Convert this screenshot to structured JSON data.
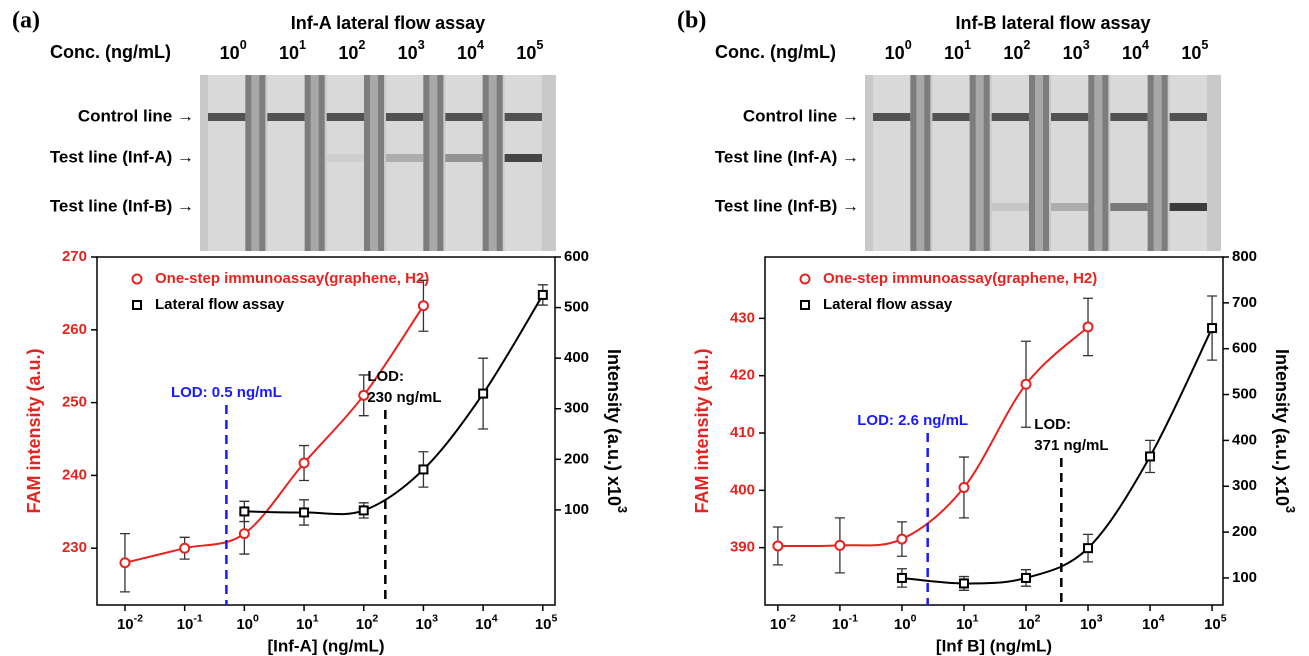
{
  "chart_data": [
    {
      "type": "line",
      "xscale": "log",
      "xlabel": "[Inf-A] (ng/mL)",
      "ylabel": "FAM intensity (a.u.)",
      "ycolor": "#e8231f",
      "y2label": {
        "label": "Intensity (a.u.) x10",
        "sup": "3"
      },
      "xlim": [
        0.0034,
        160000
      ],
      "xticks": [
        {
          "value": 0.01,
          "label": "10",
          "sup": "-2"
        },
        {
          "value": 0.1,
          "label": "10",
          "sup": "-1"
        },
        {
          "value": 1,
          "label": "10",
          "sup": "0"
        },
        {
          "value": 10,
          "label": "10",
          "sup": "1"
        },
        {
          "value": 100,
          "label": "10",
          "sup": "2"
        },
        {
          "value": 1000,
          "label": "10",
          "sup": "3"
        },
        {
          "value": 10000,
          "label": "10",
          "sup": "4"
        },
        {
          "value": 100000,
          "label": "10",
          "sup": "5"
        }
      ],
      "ylim": [
        222.2,
        270
      ],
      "yticks": [
        230,
        240,
        250,
        260,
        270
      ],
      "y2lim": [
        -88,
        600
      ],
      "y2ticks": [
        100,
        200,
        300,
        400,
        500,
        600
      ],
      "legend": "upper left",
      "series": [
        {
          "name": "One-step immunoassay(graphene, H2)",
          "color": "#e8231f",
          "marker": "circle",
          "axis": "y",
          "x": [
            0.01,
            0.1,
            1,
            10,
            100,
            1000
          ],
          "values": [
            228,
            230,
            232,
            241.7,
            251,
            263.3
          ],
          "errors": [
            4,
            1.5,
            2.8,
            2.4,
            2.8,
            3.5
          ]
        },
        {
          "name": "Lateral flow assay",
          "color": "#000000",
          "marker": "square",
          "axis": "y2",
          "x": [
            1,
            10,
            100,
            1000,
            10000,
            100000
          ],
          "values": [
            97,
            95,
            99,
            180,
            330,
            525
          ],
          "errors": [
            20,
            25,
            15,
            35,
            70,
            20
          ]
        }
      ],
      "annotations": [
        {
          "lines": [
            "LOD: 0.5 ng/mL"
          ],
          "x": 0.5,
          "color": "#1a1aff"
        },
        {
          "lines": [
            "LOD:",
            "230 ng/mL"
          ],
          "x": 230,
          "color": "#000000"
        }
      ]
    },
    {
      "type": "line",
      "xscale": "log",
      "xlabel": "[Inf B] (ng/mL)",
      "ylabel": "FAM intensity (a.u.)",
      "ycolor": "#e8231f",
      "y2label": {
        "label": "Intensity (a.u.) x10",
        "sup": "3"
      },
      "xlim": [
        0.0062,
        150000
      ],
      "xticks": [
        {
          "value": 0.01,
          "label": "10",
          "sup": "-2"
        },
        {
          "value": 0.1,
          "label": "10",
          "sup": "-1"
        },
        {
          "value": 1,
          "label": "10",
          "sup": "0"
        },
        {
          "value": 10,
          "label": "10",
          "sup": "1"
        },
        {
          "value": 100,
          "label": "10",
          "sup": "2"
        },
        {
          "value": 1000,
          "label": "10",
          "sup": "3"
        },
        {
          "value": 10000,
          "label": "10",
          "sup": "4"
        },
        {
          "value": 100000,
          "label": "10",
          "sup": "5"
        }
      ],
      "ylim": [
        380,
        440.7
      ],
      "yticks": [
        390,
        400,
        410,
        420,
        430
      ],
      "y2lim": [
        41,
        800
      ],
      "y2ticks": [
        100,
        200,
        300,
        400,
        500,
        600,
        700,
        800
      ],
      "legend": "upper left",
      "series": [
        {
          "name": "One-step immunoassay(graphene, H2)",
          "color": "#e8231f",
          "marker": "circle",
          "axis": "y",
          "x": [
            0.01,
            0.1,
            1,
            10,
            100,
            1000
          ],
          "values": [
            390.3,
            390.4,
            391.5,
            400.5,
            418.5,
            428.5
          ],
          "errors": [
            3.3,
            4.8,
            3,
            5.3,
            7.5,
            5
          ]
        },
        {
          "name": "Lateral flow assay",
          "color": "#000000",
          "marker": "square",
          "axis": "y2",
          "x": [
            1,
            10,
            100,
            1000,
            10000,
            100000
          ],
          "values": [
            100,
            88,
            100,
            165,
            365,
            645
          ],
          "errors": [
            20,
            15,
            18,
            30,
            35,
            70
          ]
        }
      ],
      "annotations": [
        {
          "lines": [
            "LOD: 2.6 ng/mL"
          ],
          "x": 2.6,
          "color": "#1a1aff"
        },
        {
          "lines": [
            "LOD:",
            "371 ng/mL"
          ],
          "x": 371,
          "color": "#000000"
        }
      ]
    }
  ],
  "strips": [
    {
      "panel_label": "(a)",
      "title": "Inf-A lateral flow assay",
      "conc_label": "Conc. (ng/mL)",
      "concentrations": [
        {
          "base": "10",
          "sup": "0"
        },
        {
          "base": "10",
          "sup": "1"
        },
        {
          "base": "10",
          "sup": "2"
        },
        {
          "base": "10",
          "sup": "3"
        },
        {
          "base": "10",
          "sup": "4"
        },
        {
          "base": "10",
          "sup": "5"
        }
      ],
      "line_labels": [
        "Control line →",
        "Test line (Inf-A) →",
        "Test line (Inf-B) →"
      ]
    },
    {
      "panel_label": "(b)",
      "title": "Inf-B lateral flow assay",
      "conc_label": "Conc. (ng/mL)",
      "concentrations": [
        {
          "base": "10",
          "sup": "0"
        },
        {
          "base": "10",
          "sup": "1"
        },
        {
          "base": "10",
          "sup": "2"
        },
        {
          "base": "10",
          "sup": "3"
        },
        {
          "base": "10",
          "sup": "4"
        },
        {
          "base": "10",
          "sup": "5"
        }
      ],
      "line_labels": [
        "Control line →",
        "Test line (Inf-A) →",
        "Test line (Inf-B) →"
      ]
    }
  ]
}
